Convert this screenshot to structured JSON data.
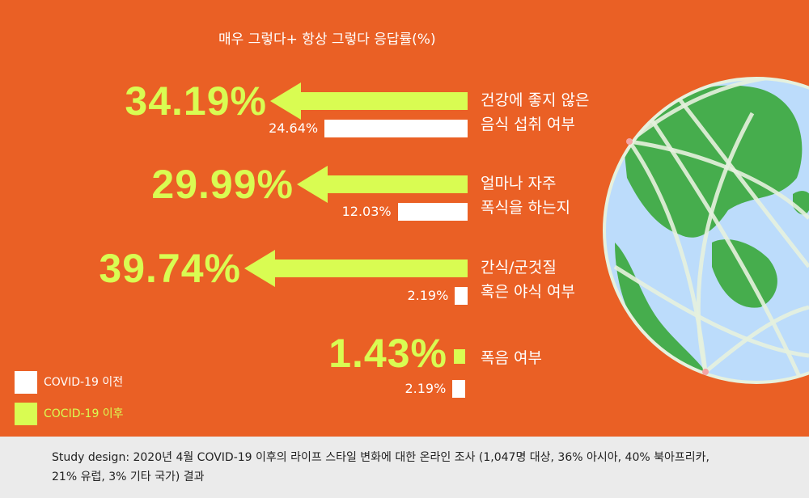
{
  "chart_data": {
    "type": "bar",
    "title": "매우 그렇다+ 항상 그렇다 응답률(%)",
    "categories": [
      [
        "건강에 좋지 않은",
        "음식 섭취 여부"
      ],
      [
        "얼마나 자주",
        "폭식을 하는지"
      ],
      [
        "간식/군것질",
        "혹은 야식 여부"
      ],
      [
        "폭음 여부"
      ]
    ],
    "series": [
      {
        "name": "COVID-19 이전",
        "values": [
          24.64,
          12.03,
          2.19,
          2.19
        ],
        "labels": [
          "24.64%",
          "12.03%",
          "2.19%",
          "2.19%"
        ],
        "color": "#ffffff"
      },
      {
        "name": "COCID-19 이후",
        "values": [
          34.19,
          29.99,
          39.74,
          1.43
        ],
        "labels": [
          "34.19%",
          "29.99%",
          "39.74%",
          "1.43%"
        ],
        "color": "#d9fc52"
      }
    ],
    "legend_position": "bottom-left"
  },
  "colors": {
    "background": "#ea6025",
    "highlight": "#d9fc52",
    "ocean": "#bcdcfb",
    "land": "#46ad4d",
    "footer": "#ebebeb"
  },
  "footer": {
    "lines": [
      "Study design: 2020년 4월 COVID-19 이후의 라이프 스타일 변화에 대한 온라인 조사 (1,047명 대상, 36% 아시아, 40% 북아프리카,",
      "21% 유럽, 3% 기타 국가) 결과"
    ]
  }
}
